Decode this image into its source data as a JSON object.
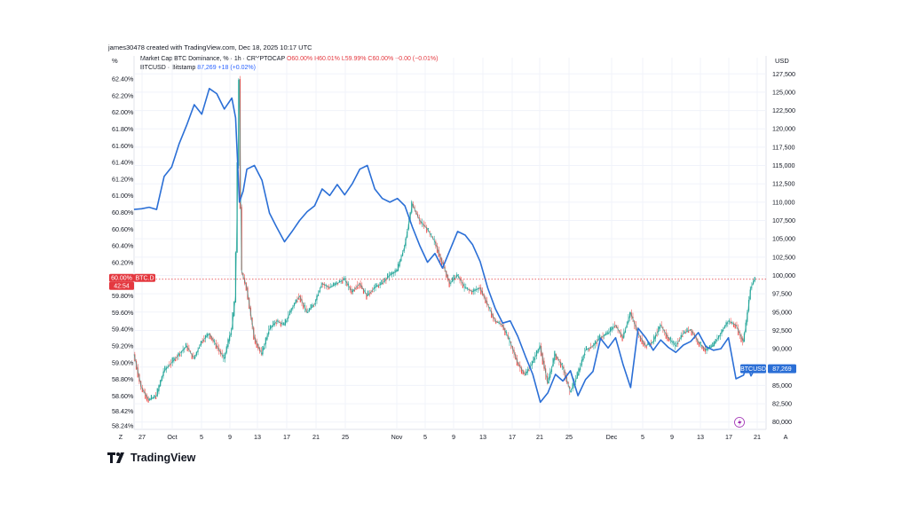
{
  "header": {
    "credit": "james30478 created with TradingView.com, Dec 18, 2025 10:17 UTC",
    "left_unit": "%",
    "right_unit": "USD"
  },
  "legend": {
    "series1_title": "Market Cap BTC Dominance, %",
    "series1_sep": " · 1h · CRYPTOCAP ",
    "series1_values": "O60.00% H60.01% L59.99% C60.00% −0.00 (−0.01%)",
    "series2_title": "BTCUSD · Bitstamp",
    "series2_values": "87,269  +18 (+0.02%)"
  },
  "badges": {
    "btcd_value": "60.00%",
    "btcd_label": "BTC.D",
    "btcd_countdown": "42:54",
    "btcusd_label": "BTCUSD",
    "btcusd_value": "87,269"
  },
  "brand": {
    "name": "TradingView"
  },
  "colors": {
    "dominance": "#e4383f",
    "price": "#2b6fd6",
    "candle_up": "#26a69a",
    "candle_down": "#ef5350",
    "grid": "#f0f3fa"
  },
  "chart_data": {
    "type": "line",
    "left_axis": {
      "label": "%",
      "ticks": [
        "58.24%",
        "58.42%",
        "58.60%",
        "58.80%",
        "59.00%",
        "59.20%",
        "59.40%",
        "59.60%",
        "59.80%",
        "60.20%",
        "60.40%",
        "60.60%",
        "60.80%",
        "61.00%",
        "61.20%",
        "61.40%",
        "61.60%",
        "61.80%",
        "62.00%",
        "62.20%",
        "62.40%"
      ],
      "ylim": [
        58.2,
        62.55
      ]
    },
    "right_axis": {
      "label": "USD",
      "ticks": [
        "80,000",
        "82,500",
        "85,000",
        "87,500",
        "90,000",
        "92,500",
        "95,000",
        "97,500",
        "100,000",
        "102,500",
        "105,000",
        "107,500",
        "110,000",
        "112,500",
        "115,000",
        "117,500",
        "120,000",
        "122,500",
        "125,000",
        "127,500"
      ],
      "ylim": [
        79000,
        128500
      ]
    },
    "x_ticks": [
      "Z",
      "27",
      "Oct",
      "5",
      "9",
      "13",
      "17",
      "21",
      "25",
      "Nov",
      "5",
      "9",
      "13",
      "17",
      "21",
      "25",
      "Dec",
      "5",
      "9",
      "13",
      "17",
      "21",
      "A"
    ],
    "x_range_days": [
      0,
      84
    ],
    "series": [
      {
        "name": "BTCUSD · Bitstamp",
        "axis": "right",
        "points": [
          [
            0,
            109000
          ],
          [
            1,
            109100
          ],
          [
            2,
            109300
          ],
          [
            3,
            109000
          ],
          [
            4,
            113500
          ],
          [
            5,
            114800
          ],
          [
            6,
            118000
          ],
          [
            7,
            120500
          ],
          [
            8,
            123300
          ],
          [
            9,
            122000
          ],
          [
            10,
            125500
          ],
          [
            11,
            124800
          ],
          [
            12,
            122700
          ],
          [
            13,
            124200
          ],
          [
            13.5,
            121500
          ],
          [
            14,
            110000
          ],
          [
            14.5,
            111500
          ],
          [
            15,
            114500
          ],
          [
            16,
            115000
          ],
          [
            17,
            113000
          ],
          [
            18,
            108500
          ],
          [
            19,
            106500
          ],
          [
            20,
            104600
          ],
          [
            21,
            106000
          ],
          [
            22,
            107500
          ],
          [
            23,
            108700
          ],
          [
            24,
            109500
          ],
          [
            25,
            111800
          ],
          [
            26,
            110900
          ],
          [
            27,
            112400
          ],
          [
            28,
            111000
          ],
          [
            29,
            112500
          ],
          [
            30,
            114500
          ],
          [
            31,
            115000
          ],
          [
            32,
            111800
          ],
          [
            33,
            110500
          ],
          [
            34,
            110000
          ],
          [
            35,
            110500
          ],
          [
            36,
            109500
          ],
          [
            37,
            106600
          ],
          [
            38,
            104000
          ],
          [
            39,
            101800
          ],
          [
            40,
            103000
          ],
          [
            41,
            101000
          ],
          [
            42,
            103500
          ],
          [
            43,
            106000
          ],
          [
            44,
            105500
          ],
          [
            45,
            104200
          ],
          [
            46,
            101900
          ],
          [
            47,
            98300
          ],
          [
            48,
            95500
          ],
          [
            49,
            93500
          ],
          [
            50,
            93800
          ],
          [
            51,
            91700
          ],
          [
            52,
            89000
          ],
          [
            53,
            86500
          ],
          [
            54,
            82700
          ],
          [
            55,
            84000
          ],
          [
            56,
            86500
          ],
          [
            57,
            85600
          ],
          [
            58,
            87000
          ],
          [
            59,
            83600
          ],
          [
            60,
            85800
          ],
          [
            61,
            86900
          ],
          [
            62,
            91400
          ],
          [
            63,
            90100
          ],
          [
            64,
            91500
          ],
          [
            65,
            87800
          ],
          [
            66,
            84700
          ],
          [
            67,
            92800
          ],
          [
            68,
            91500
          ],
          [
            69,
            89800
          ],
          [
            70,
            91200
          ],
          [
            71,
            90200
          ],
          [
            72,
            89500
          ],
          [
            73,
            90500
          ],
          [
            74,
            91000
          ],
          [
            75,
            92200
          ],
          [
            76,
            90300
          ],
          [
            77,
            89800
          ],
          [
            78,
            90000
          ],
          [
            79,
            91500
          ],
          [
            80,
            85900
          ],
          [
            81,
            86400
          ],
          [
            81.5,
            87800
          ],
          [
            82,
            86300
          ],
          [
            82.5,
            87269
          ]
        ]
      },
      {
        "name": "Market Cap BTC Dominance, %",
        "axis": "left",
        "points": [
          [
            0,
            59.1
          ],
          [
            1,
            58.7
          ],
          [
            2,
            58.55
          ],
          [
            3,
            58.6
          ],
          [
            4,
            58.9
          ],
          [
            5,
            59.0
          ],
          [
            6,
            59.1
          ],
          [
            7,
            59.2
          ],
          [
            8,
            59.05
          ],
          [
            9,
            59.25
          ],
          [
            10,
            59.35
          ],
          [
            11,
            59.2
          ],
          [
            12,
            59.05
          ],
          [
            13,
            59.4
          ],
          [
            13.5,
            59.8
          ],
          [
            14,
            62.4
          ],
          [
            14.3,
            60.1
          ],
          [
            15,
            59.9
          ],
          [
            16,
            59.3
          ],
          [
            17,
            59.1
          ],
          [
            18,
            59.4
          ],
          [
            19,
            59.5
          ],
          [
            20,
            59.45
          ],
          [
            21,
            59.65
          ],
          [
            22,
            59.8
          ],
          [
            23,
            59.6
          ],
          [
            24,
            59.7
          ],
          [
            25,
            59.95
          ],
          [
            26,
            59.9
          ],
          [
            27,
            59.95
          ],
          [
            28,
            60.0
          ],
          [
            29,
            59.85
          ],
          [
            30,
            59.95
          ],
          [
            31,
            59.8
          ],
          [
            32,
            59.9
          ],
          [
            33,
            59.95
          ],
          [
            34,
            60.05
          ],
          [
            35,
            60.1
          ],
          [
            36,
            60.4
          ],
          [
            37,
            60.9
          ],
          [
            38,
            60.7
          ],
          [
            39,
            60.6
          ],
          [
            40,
            60.45
          ],
          [
            41,
            60.2
          ],
          [
            42,
            59.95
          ],
          [
            43,
            60.05
          ],
          [
            44,
            59.9
          ],
          [
            45,
            59.85
          ],
          [
            46,
            59.9
          ],
          [
            47,
            59.7
          ],
          [
            48,
            59.5
          ],
          [
            49,
            59.45
          ],
          [
            50,
            59.25
          ],
          [
            51,
            59.0
          ],
          [
            52,
            58.85
          ],
          [
            53,
            59.0
          ],
          [
            54,
            59.2
          ],
          [
            55,
            58.75
          ],
          [
            56,
            59.1
          ],
          [
            57,
            58.95
          ],
          [
            58,
            58.65
          ],
          [
            59,
            58.85
          ],
          [
            60,
            59.15
          ],
          [
            61,
            59.2
          ],
          [
            62,
            59.3
          ],
          [
            63,
            59.35
          ],
          [
            64,
            59.45
          ],
          [
            65,
            59.3
          ],
          [
            66,
            59.6
          ],
          [
            67,
            59.35
          ],
          [
            68,
            59.2
          ],
          [
            69,
            59.25
          ],
          [
            70,
            59.45
          ],
          [
            71,
            59.3
          ],
          [
            72,
            59.2
          ],
          [
            73,
            59.35
          ],
          [
            74,
            59.4
          ],
          [
            75,
            59.25
          ],
          [
            76,
            59.15
          ],
          [
            77,
            59.2
          ],
          [
            78,
            59.35
          ],
          [
            79,
            59.5
          ],
          [
            80,
            59.45
          ],
          [
            81,
            59.25
          ],
          [
            81.5,
            59.55
          ],
          [
            82,
            59.9
          ],
          [
            82.5,
            60.0
          ]
        ]
      }
    ]
  }
}
